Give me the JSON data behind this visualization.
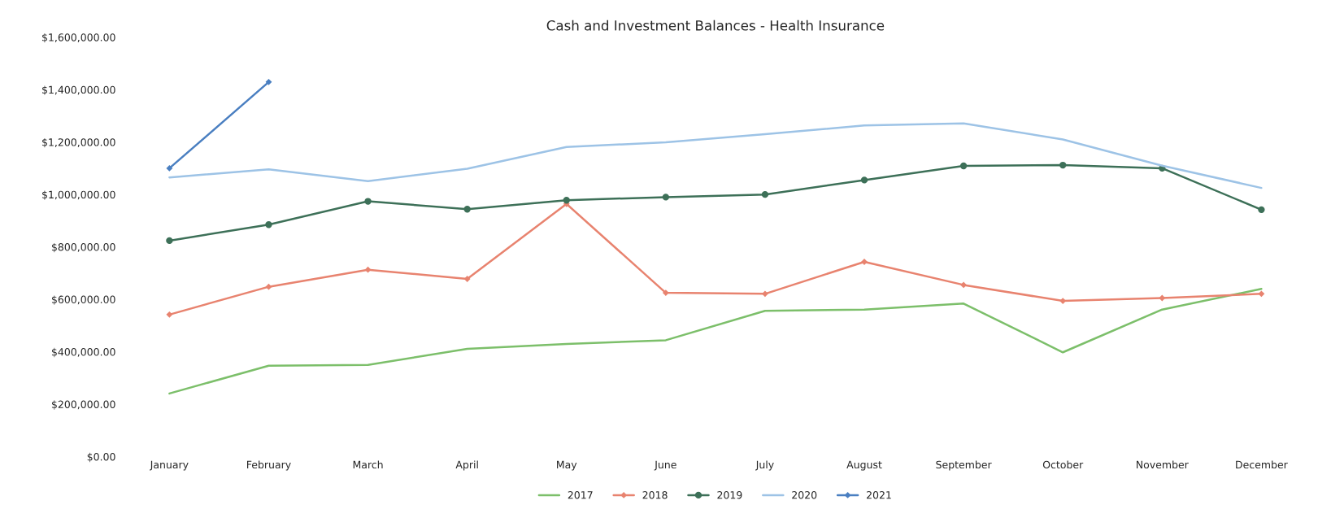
{
  "chart_data": {
    "type": "line",
    "title": "Cash and Investment Balances - Health Insurance",
    "categories": [
      "January",
      "February",
      "March",
      "April",
      "May",
      "June",
      "July",
      "August",
      "September",
      "October",
      "November",
      "December"
    ],
    "series": [
      {
        "name": "2017",
        "color": "#7cbf6a",
        "marker": "none",
        "values": [
          241000,
          347000,
          350000,
          411000,
          430000,
          444000,
          556000,
          561000,
          584000,
          398000,
          561000,
          640000
        ]
      },
      {
        "name": "2018",
        "color": "#e8836f",
        "marker": "diamond",
        "values": [
          542000,
          648000,
          713000,
          678000,
          964000,
          625000,
          621000,
          743000,
          655000,
          594000,
          605000,
          621000
        ]
      },
      {
        "name": "2019",
        "color": "#3d7058",
        "marker": "circle",
        "values": [
          824000,
          885000,
          974000,
          944000,
          978000,
          990000,
          1000000,
          1055000,
          1109000,
          1112000,
          1100000,
          942000
        ]
      },
      {
        "name": "2020",
        "color": "#9dc3e6",
        "marker": "none",
        "values": [
          1065000,
          1096000,
          1051000,
          1098000,
          1181000,
          1199000,
          1230000,
          1263000,
          1271000,
          1210000,
          1110000,
          1025000
        ]
      },
      {
        "name": "2021",
        "color": "#4a7fc1",
        "marker": "diamond",
        "values": [
          1100000,
          1429000,
          null,
          null,
          null,
          null,
          null,
          null,
          null,
          null,
          null,
          null
        ]
      }
    ],
    "ylim": [
      0,
      1600000
    ],
    "yticks": [
      {
        "value": 0,
        "label": "$0.00"
      },
      {
        "value": 200000,
        "label": "$200,000.00"
      },
      {
        "value": 400000,
        "label": "$400,000.00"
      },
      {
        "value": 600000,
        "label": "$600,000.00"
      },
      {
        "value": 800000,
        "label": "$800,000.00"
      },
      {
        "value": 1000000,
        "label": "$1,000,000.00"
      },
      {
        "value": 1200000,
        "label": "$1,200,000.00"
      },
      {
        "value": 1400000,
        "label": "$1,400,000.00"
      },
      {
        "value": 1600000,
        "label": "$1,600,000.00"
      }
    ],
    "grid": false,
    "legend": "bottom",
    "line_style": "solid"
  }
}
